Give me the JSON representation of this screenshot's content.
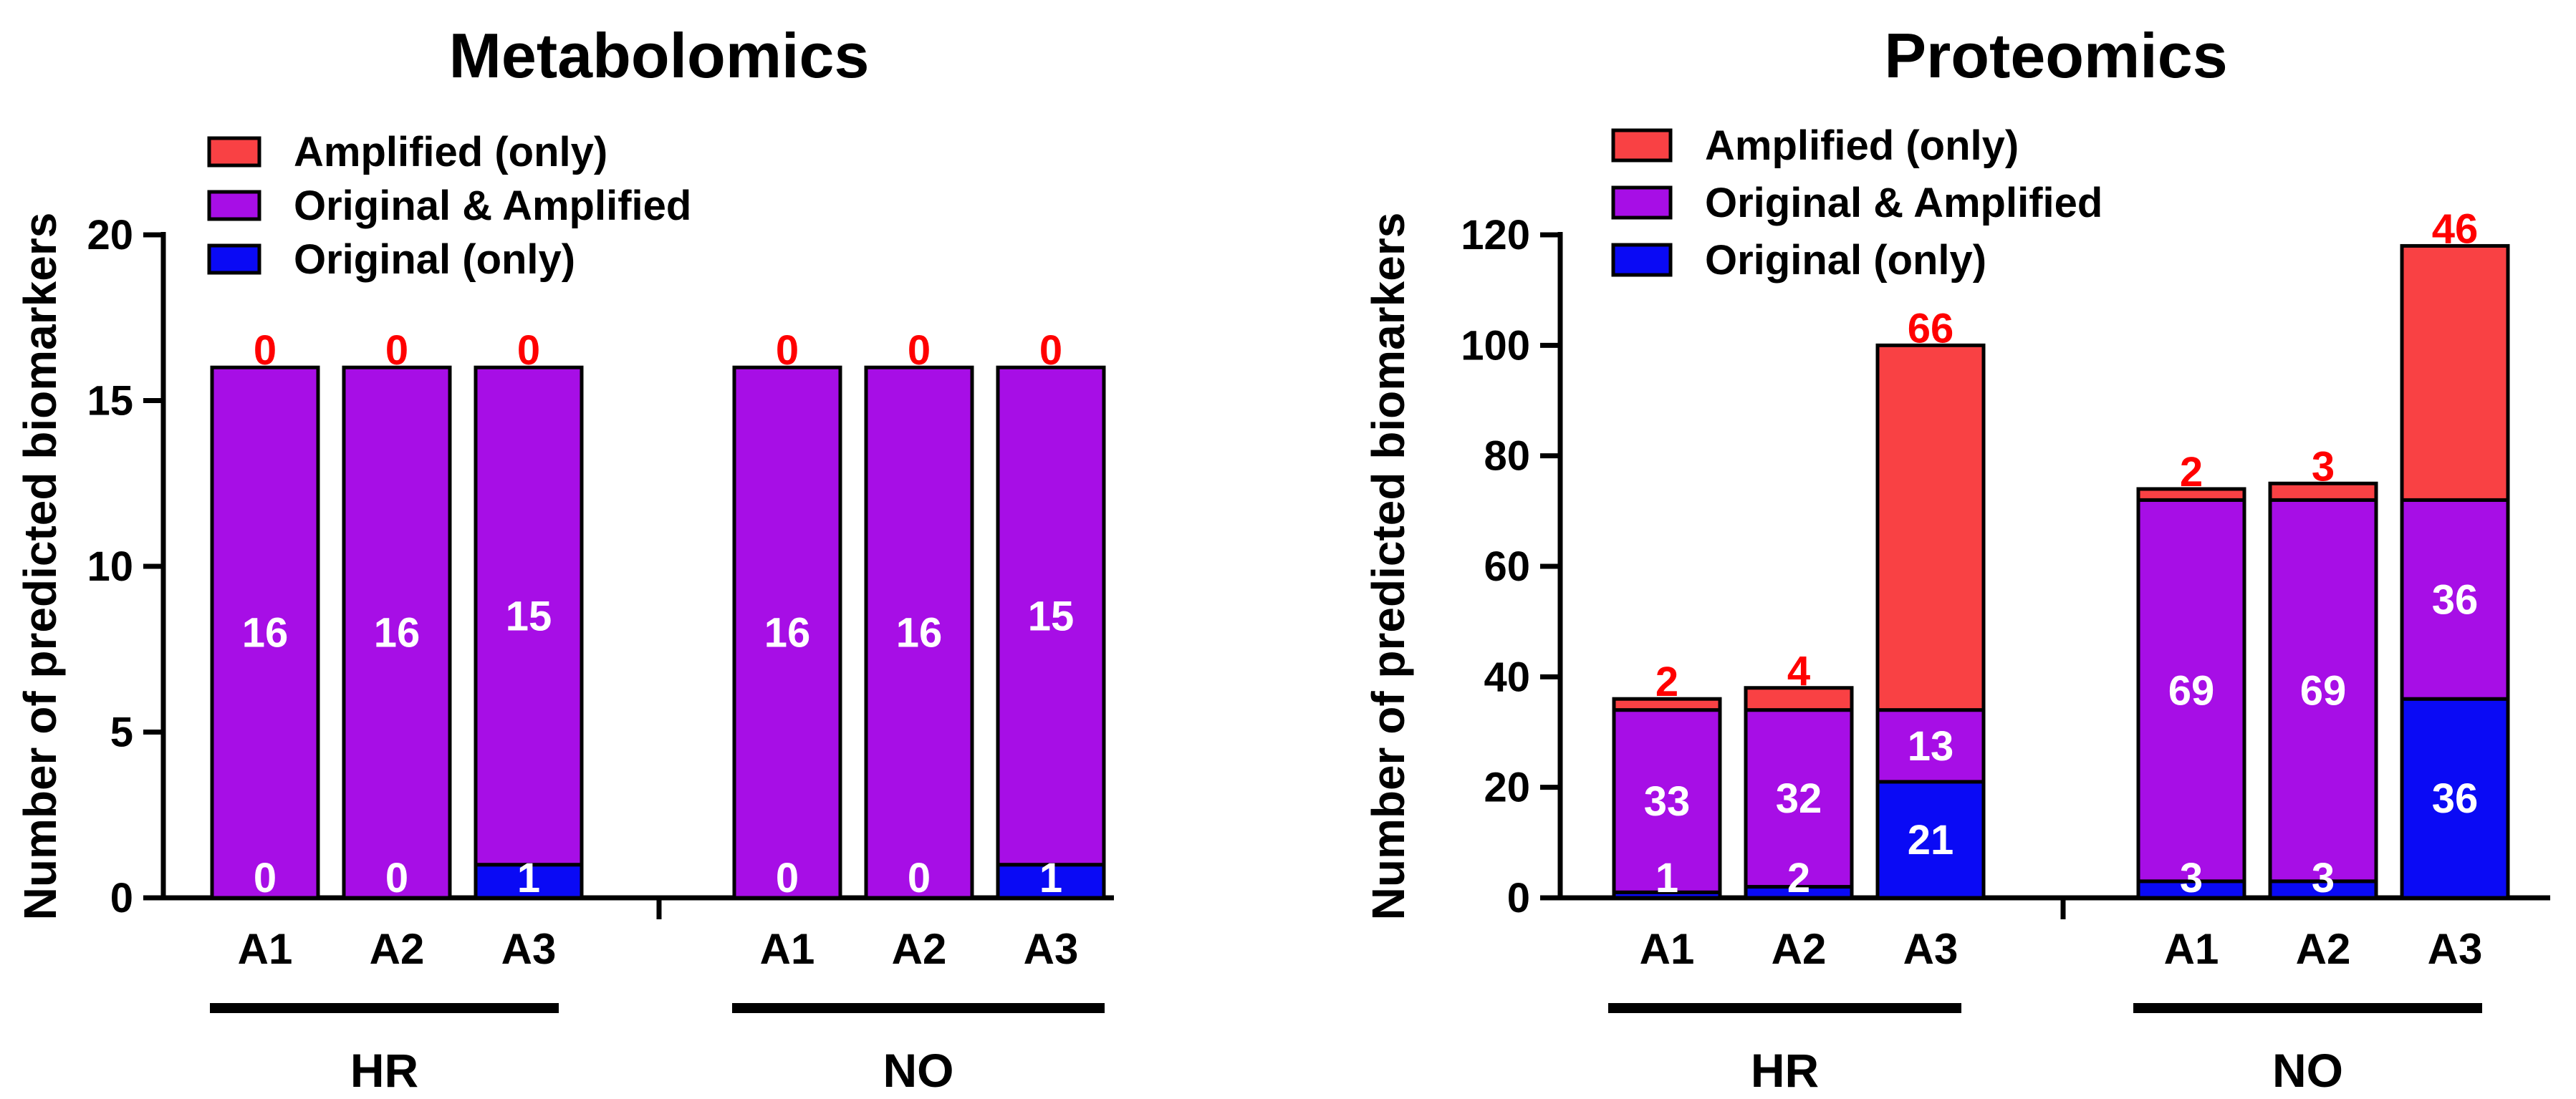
{
  "colors": {
    "amplified_only": "#F94144",
    "original_and_amplified": "#A70EE6",
    "original_only": "#0A0AF5",
    "top_label": "#FF0000",
    "inner_label": "#FFFFFF"
  },
  "chart_data": [
    {
      "type": "bar",
      "stacked": true,
      "title": "Metabolomics",
      "ylabel": "Number of predicted biomarkers",
      "xlabel": "",
      "ylim": [
        0,
        20
      ],
      "yticks": [
        0,
        5,
        10,
        15,
        20
      ],
      "categories": [
        "A1",
        "A2",
        "A3",
        "A1",
        "A2",
        "A3"
      ],
      "groups": [
        {
          "label": "HR",
          "categories": [
            "A1",
            "A2",
            "A3"
          ]
        },
        {
          "label": "NO",
          "categories": [
            "A1",
            "A2",
            "A3"
          ]
        }
      ],
      "legend_position": "top-left",
      "series": [
        {
          "name": "Amplified (only)",
          "color_key": "amplified_only",
          "values": [
            0,
            0,
            0,
            0,
            0,
            0
          ]
        },
        {
          "name": "Original & Amplified",
          "color_key": "original_and_amplified",
          "values": [
            16,
            16,
            15,
            16,
            16,
            15
          ]
        },
        {
          "name": "Original (only)",
          "color_key": "original_only",
          "values": [
            0,
            0,
            1,
            0,
            0,
            1
          ]
        }
      ]
    },
    {
      "type": "bar",
      "stacked": true,
      "title": "Proteomics",
      "ylabel": "Number of predicted biomarkers",
      "xlabel": "",
      "ylim": [
        0,
        120
      ],
      "yticks": [
        0,
        20,
        40,
        60,
        80,
        100,
        120
      ],
      "categories": [
        "A1",
        "A2",
        "A3",
        "A1",
        "A2",
        "A3"
      ],
      "groups": [
        {
          "label": "HR",
          "categories": [
            "A1",
            "A2",
            "A3"
          ]
        },
        {
          "label": "NO",
          "categories": [
            "A1",
            "A2",
            "A3"
          ]
        }
      ],
      "legend_position": "top-left",
      "series": [
        {
          "name": "Amplified (only)",
          "color_key": "amplified_only",
          "values": [
            2,
            4,
            66,
            2,
            3,
            46
          ]
        },
        {
          "name": "Original & Amplified",
          "color_key": "original_and_amplified",
          "values": [
            33,
            32,
            13,
            69,
            69,
            36
          ]
        },
        {
          "name": "Original (only)",
          "color_key": "original_only",
          "values": [
            1,
            2,
            21,
            3,
            3,
            36
          ]
        }
      ]
    }
  ]
}
